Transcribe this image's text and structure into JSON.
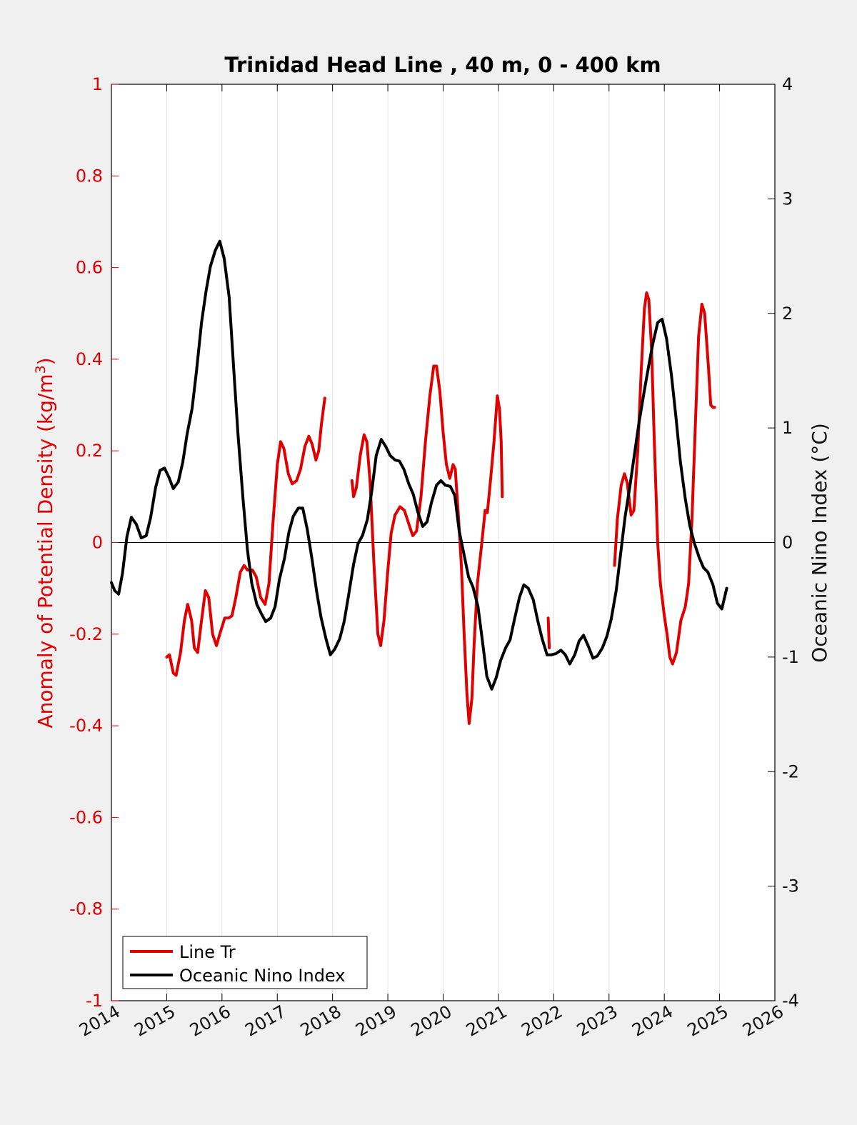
{
  "chart_data": {
    "type": "line",
    "title": "Trinidad Head Line , 40 m, 0 - 400 km",
    "ylabel_left": "Anomaly of Potential Density (kg/m",
    "ylabel_left_sup": "3",
    "ylabel_left_close": ")",
    "ylabel_right": "Oceanic Nino Index (°C)",
    "xlim": [
      2014,
      2026
    ],
    "ylim_left": [
      -1,
      1
    ],
    "ylim_right": [
      -4,
      4
    ],
    "x_ticks": [
      "2014",
      "2015",
      "2016",
      "2017",
      "2018",
      "2019",
      "2020",
      "2021",
      "2022",
      "2023",
      "2024",
      "2025",
      "2026"
    ],
    "y_ticks_left": [
      "1",
      "0.8",
      "0.6",
      "0.4",
      "0.2",
      "0",
      "-0.2",
      "-0.4",
      "-0.6",
      "-0.8",
      "-1"
    ],
    "y_ticks_right": [
      "4",
      "3",
      "2",
      "1",
      "0",
      "-1",
      "-2",
      "-3",
      "-4"
    ],
    "grid": "vertical",
    "legend_position": "bottom-left",
    "colors": {
      "line_tr": "#e00000",
      "oni": "#000000",
      "left_axis": "#e00000"
    },
    "series": [
      {
        "name": "Line Tr",
        "axis": "left",
        "segments": [
          [
            [
              2015.0,
              -0.25
            ],
            [
              2015.05,
              -0.245
            ],
            [
              2015.12,
              -0.285
            ],
            [
              2015.17,
              -0.29
            ],
            [
              2015.25,
              -0.24
            ],
            [
              2015.32,
              -0.17
            ],
            [
              2015.38,
              -0.135
            ],
            [
              2015.45,
              -0.17
            ],
            [
              2015.5,
              -0.23
            ],
            [
              2015.56,
              -0.24
            ],
            [
              2015.62,
              -0.18
            ],
            [
              2015.7,
              -0.105
            ],
            [
              2015.76,
              -0.12
            ],
            [
              2015.83,
              -0.2
            ],
            [
              2015.9,
              -0.225
            ],
            [
              2015.96,
              -0.2
            ],
            [
              2016.05,
              -0.165
            ],
            [
              2016.12,
              -0.165
            ],
            [
              2016.18,
              -0.16
            ],
            [
              2016.25,
              -0.12
            ],
            [
              2016.33,
              -0.065
            ],
            [
              2016.4,
              -0.05
            ],
            [
              2016.46,
              -0.06
            ],
            [
              2016.55,
              -0.06
            ],
            [
              2016.62,
              -0.075
            ],
            [
              2016.7,
              -0.12
            ],
            [
              2016.78,
              -0.135
            ],
            [
              2016.85,
              -0.09
            ],
            [
              2016.92,
              0.04
            ],
            [
              2017.0,
              0.17
            ],
            [
              2017.06,
              0.22
            ],
            [
              2017.12,
              0.205
            ],
            [
              2017.2,
              0.15
            ],
            [
              2017.27,
              0.128
            ],
            [
              2017.35,
              0.135
            ],
            [
              2017.42,
              0.16
            ],
            [
              2017.5,
              0.21
            ],
            [
              2017.57,
              0.232
            ],
            [
              2017.63,
              0.215
            ],
            [
              2017.7,
              0.18
            ],
            [
              2017.75,
              0.2
            ],
            [
              2017.8,
              0.26
            ],
            [
              2017.86,
              0.315
            ]
          ],
          [
            [
              2018.35,
              0.135
            ],
            [
              2018.38,
              0.1
            ],
            [
              2018.43,
              0.12
            ],
            [
              2018.5,
              0.19
            ],
            [
              2018.57,
              0.235
            ],
            [
              2018.62,
              0.22
            ],
            [
              2018.68,
              0.13
            ],
            [
              2018.75,
              -0.05
            ],
            [
              2018.82,
              -0.2
            ],
            [
              2018.87,
              -0.225
            ],
            [
              2018.93,
              -0.17
            ],
            [
              2019.0,
              -0.06
            ],
            [
              2019.06,
              0.02
            ],
            [
              2019.13,
              0.06
            ],
            [
              2019.22,
              0.078
            ],
            [
              2019.3,
              0.07
            ],
            [
              2019.38,
              0.04
            ],
            [
              2019.45,
              0.015
            ],
            [
              2019.52,
              0.025
            ],
            [
              2019.6,
              0.1
            ],
            [
              2019.68,
              0.22
            ],
            [
              2019.76,
              0.32
            ],
            [
              2019.83,
              0.385
            ],
            [
              2019.88,
              0.385
            ],
            [
              2019.94,
              0.33
            ],
            [
              2020.0,
              0.24
            ],
            [
              2020.06,
              0.17
            ],
            [
              2020.12,
              0.14
            ],
            [
              2020.18,
              0.17
            ],
            [
              2020.22,
              0.16
            ],
            [
              2020.28,
              0.05
            ],
            [
              2020.33,
              -0.05
            ],
            [
              2020.38,
              -0.2
            ],
            [
              2020.43,
              -0.33
            ],
            [
              2020.47,
              -0.395
            ],
            [
              2020.52,
              -0.34
            ],
            [
              2020.56,
              -0.22
            ],
            [
              2020.62,
              -0.09
            ],
            [
              2020.7,
              0.0
            ],
            [
              2020.76,
              0.07
            ],
            [
              2020.8,
              0.065
            ],
            [
              2020.86,
              0.14
            ],
            [
              2020.92,
              0.22
            ],
            [
              2020.98,
              0.32
            ],
            [
              2021.02,
              0.29
            ],
            [
              2021.05,
              0.22
            ],
            [
              2021.07,
              0.1
            ]
          ],
          [
            [
              2021.9,
              -0.165
            ],
            [
              2021.92,
              -0.23
            ]
          ],
          [
            [
              2023.1,
              -0.05
            ],
            [
              2023.15,
              0.05
            ],
            [
              2023.22,
              0.125
            ],
            [
              2023.28,
              0.15
            ],
            [
              2023.33,
              0.13
            ],
            [
              2023.4,
              0.06
            ],
            [
              2023.45,
              0.07
            ],
            [
              2023.52,
              0.2
            ],
            [
              2023.58,
              0.37
            ],
            [
              2023.64,
              0.51
            ],
            [
              2023.68,
              0.545
            ],
            [
              2023.72,
              0.53
            ],
            [
              2023.77,
              0.42
            ],
            [
              2023.82,
              0.22
            ],
            [
              2023.88,
              0.0
            ],
            [
              2023.93,
              -0.09
            ],
            [
              2024.0,
              -0.16
            ],
            [
              2024.05,
              -0.2
            ],
            [
              2024.1,
              -0.25
            ],
            [
              2024.15,
              -0.265
            ],
            [
              2024.22,
              -0.24
            ],
            [
              2024.3,
              -0.17
            ],
            [
              2024.38,
              -0.14
            ],
            [
              2024.44,
              -0.09
            ],
            [
              2024.5,
              0.05
            ],
            [
              2024.56,
              0.25
            ],
            [
              2024.62,
              0.45
            ],
            [
              2024.68,
              0.52
            ],
            [
              2024.73,
              0.5
            ],
            [
              2024.8,
              0.38
            ],
            [
              2024.84,
              0.3
            ],
            [
              2024.88,
              0.295
            ],
            [
              2024.91,
              0.295
            ]
          ]
        ]
      },
      {
        "name": "Oceanic Nino Index",
        "axis": "right",
        "segments": [
          [
            [
              2014.0,
              -0.35
            ],
            [
              2014.06,
              -0.42
            ],
            [
              2014.13,
              -0.45
            ],
            [
              2014.2,
              -0.27
            ],
            [
              2014.28,
              0.05
            ],
            [
              2014.36,
              0.22
            ],
            [
              2014.45,
              0.16
            ],
            [
              2014.54,
              0.04
            ],
            [
              2014.63,
              0.06
            ],
            [
              2014.71,
              0.22
            ],
            [
              2014.8,
              0.48
            ],
            [
              2014.88,
              0.63
            ],
            [
              2014.96,
              0.65
            ],
            [
              2015.04,
              0.57
            ],
            [
              2015.12,
              0.47
            ],
            [
              2015.21,
              0.53
            ],
            [
              2015.29,
              0.7
            ],
            [
              2015.37,
              0.95
            ],
            [
              2015.46,
              1.17
            ],
            [
              2015.54,
              1.5
            ],
            [
              2015.63,
              1.92
            ],
            [
              2015.71,
              2.19
            ],
            [
              2015.79,
              2.41
            ],
            [
              2015.88,
              2.55
            ],
            [
              2015.96,
              2.63
            ],
            [
              2016.04,
              2.48
            ],
            [
              2016.13,
              2.14
            ],
            [
              2016.21,
              1.53
            ],
            [
              2016.29,
              0.94
            ],
            [
              2016.38,
              0.38
            ],
            [
              2016.46,
              -0.06
            ],
            [
              2016.54,
              -0.36
            ],
            [
              2016.63,
              -0.54
            ],
            [
              2016.71,
              -0.62
            ],
            [
              2016.79,
              -0.69
            ],
            [
              2016.88,
              -0.66
            ],
            [
              2016.96,
              -0.56
            ],
            [
              2017.04,
              -0.32
            ],
            [
              2017.13,
              -0.14
            ],
            [
              2017.21,
              0.09
            ],
            [
              2017.29,
              0.23
            ],
            [
              2017.38,
              0.3
            ],
            [
              2017.46,
              0.3
            ],
            [
              2017.54,
              0.12
            ],
            [
              2017.63,
              -0.15
            ],
            [
              2017.71,
              -0.42
            ],
            [
              2017.79,
              -0.65
            ],
            [
              2017.88,
              -0.84
            ],
            [
              2017.96,
              -0.98
            ],
            [
              2018.04,
              -0.93
            ],
            [
              2018.13,
              -0.84
            ],
            [
              2018.21,
              -0.69
            ],
            [
              2018.29,
              -0.46
            ],
            [
              2018.38,
              -0.19
            ],
            [
              2018.46,
              -0.01
            ],
            [
              2018.54,
              0.06
            ],
            [
              2018.63,
              0.2
            ],
            [
              2018.71,
              0.45
            ],
            [
              2018.79,
              0.76
            ],
            [
              2018.88,
              0.9
            ],
            [
              2018.96,
              0.84
            ],
            [
              2019.04,
              0.76
            ],
            [
              2019.13,
              0.72
            ],
            [
              2019.21,
              0.71
            ],
            [
              2019.29,
              0.64
            ],
            [
              2019.38,
              0.51
            ],
            [
              2019.46,
              0.42
            ],
            [
              2019.54,
              0.27
            ],
            [
              2019.63,
              0.14
            ],
            [
              2019.71,
              0.18
            ],
            [
              2019.79,
              0.35
            ],
            [
              2019.88,
              0.5
            ],
            [
              2019.96,
              0.54
            ],
            [
              2020.04,
              0.5
            ],
            [
              2020.13,
              0.49
            ],
            [
              2020.21,
              0.41
            ],
            [
              2020.29,
              0.1
            ],
            [
              2020.38,
              -0.11
            ],
            [
              2020.46,
              -0.3
            ],
            [
              2020.54,
              -0.39
            ],
            [
              2020.63,
              -0.56
            ],
            [
              2020.71,
              -0.86
            ],
            [
              2020.79,
              -1.17
            ],
            [
              2020.88,
              -1.28
            ],
            [
              2020.96,
              -1.18
            ],
            [
              2021.04,
              -1.03
            ],
            [
              2021.13,
              -0.92
            ],
            [
              2021.21,
              -0.85
            ],
            [
              2021.29,
              -0.67
            ],
            [
              2021.38,
              -0.48
            ],
            [
              2021.46,
              -0.37
            ],
            [
              2021.54,
              -0.4
            ],
            [
              2021.63,
              -0.5
            ],
            [
              2021.71,
              -0.68
            ],
            [
              2021.79,
              -0.84
            ],
            [
              2021.88,
              -0.98
            ],
            [
              2021.96,
              -0.98
            ],
            [
              2022.04,
              -0.97
            ],
            [
              2022.13,
              -0.94
            ],
            [
              2022.21,
              -0.98
            ],
            [
              2022.29,
              -1.06
            ],
            [
              2022.38,
              -0.98
            ],
            [
              2022.46,
              -0.86
            ],
            [
              2022.54,
              -0.81
            ],
            [
              2022.63,
              -0.91
            ],
            [
              2022.71,
              -1.01
            ],
            [
              2022.79,
              -0.99
            ],
            [
              2022.88,
              -0.92
            ],
            [
              2022.96,
              -0.82
            ],
            [
              2023.04,
              -0.67
            ],
            [
              2023.13,
              -0.42
            ],
            [
              2023.21,
              -0.1
            ],
            [
              2023.29,
              0.22
            ],
            [
              2023.38,
              0.5
            ],
            [
              2023.46,
              0.77
            ],
            [
              2023.54,
              1.04
            ],
            [
              2023.63,
              1.3
            ],
            [
              2023.71,
              1.52
            ],
            [
              2023.79,
              1.73
            ],
            [
              2023.88,
              1.92
            ],
            [
              2023.96,
              1.95
            ],
            [
              2024.04,
              1.78
            ],
            [
              2024.13,
              1.46
            ],
            [
              2024.21,
              1.1
            ],
            [
              2024.29,
              0.71
            ],
            [
              2024.38,
              0.38
            ],
            [
              2024.46,
              0.15
            ],
            [
              2024.54,
              0.0
            ],
            [
              2024.63,
              -0.13
            ],
            [
              2024.71,
              -0.22
            ],
            [
              2024.79,
              -0.26
            ],
            [
              2024.88,
              -0.37
            ],
            [
              2024.96,
              -0.53
            ],
            [
              2025.04,
              -0.58
            ],
            [
              2025.13,
              -0.4
            ]
          ]
        ]
      }
    ]
  }
}
